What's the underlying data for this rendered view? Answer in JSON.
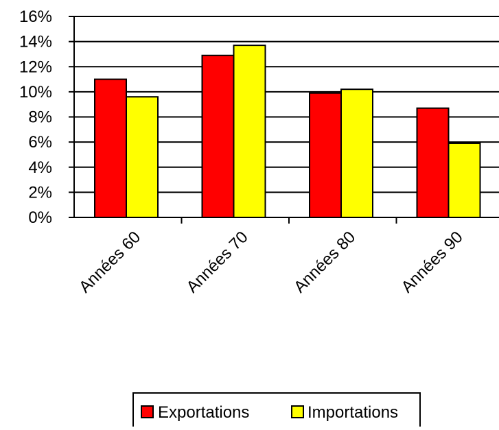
{
  "chart_data": {
    "type": "bar",
    "title": "",
    "xlabel": "",
    "ylabel": "",
    "categories": [
      "Années 60",
      "Années 70",
      "Années 80",
      "Années 90"
    ],
    "series": [
      {
        "name": "Exportations",
        "values": [
          11.0,
          12.9,
          9.9,
          8.7
        ],
        "color": "#FF0000"
      },
      {
        "name": "Importations",
        "values": [
          9.6,
          13.7,
          10.2,
          5.9
        ],
        "color": "#FFFF00"
      }
    ],
    "ylim": [
      0,
      16
    ],
    "yticks": [
      "0%",
      "2%",
      "4%",
      "6%",
      "8%",
      "10%",
      "12%",
      "14%",
      "16%"
    ],
    "grid": true,
    "legend": "bottom"
  }
}
